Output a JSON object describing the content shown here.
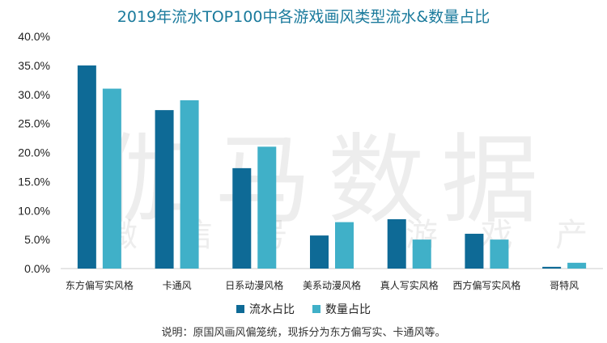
{
  "watermark": {
    "main": "伽马数据",
    "sub": "微 信 号 ： 游 戏 产 业 报 告"
  },
  "note": "说明：原国风画风偏笼统，现拆分为东方偏写实、卡通风等。",
  "chart_data": {
    "type": "bar",
    "title": "2019年流水TOP100中各游戏画风类型流水&数量占比",
    "categories": [
      "东方偏写实风格",
      "卡通风",
      "日系动漫风格",
      "美系动漫风格",
      "真人写实风格",
      "西方偏写实风格",
      "哥特风"
    ],
    "series": [
      {
        "name": "流水占比",
        "color": "#0e6a96",
        "values": [
          35.0,
          27.3,
          17.3,
          5.7,
          8.5,
          6.0,
          0.3
        ]
      },
      {
        "name": "数量占比",
        "color": "#40b0c8",
        "values": [
          31.0,
          29.0,
          21.0,
          8.0,
          5.0,
          5.0,
          1.0
        ]
      }
    ],
    "ylim": [
      0,
      40
    ],
    "yticks": [
      "0.0%",
      "5.0%",
      "10.0%",
      "15.0%",
      "20.0%",
      "25.0%",
      "30.0%",
      "35.0%",
      "40.0%"
    ],
    "grid": false,
    "legend": "bottom"
  }
}
